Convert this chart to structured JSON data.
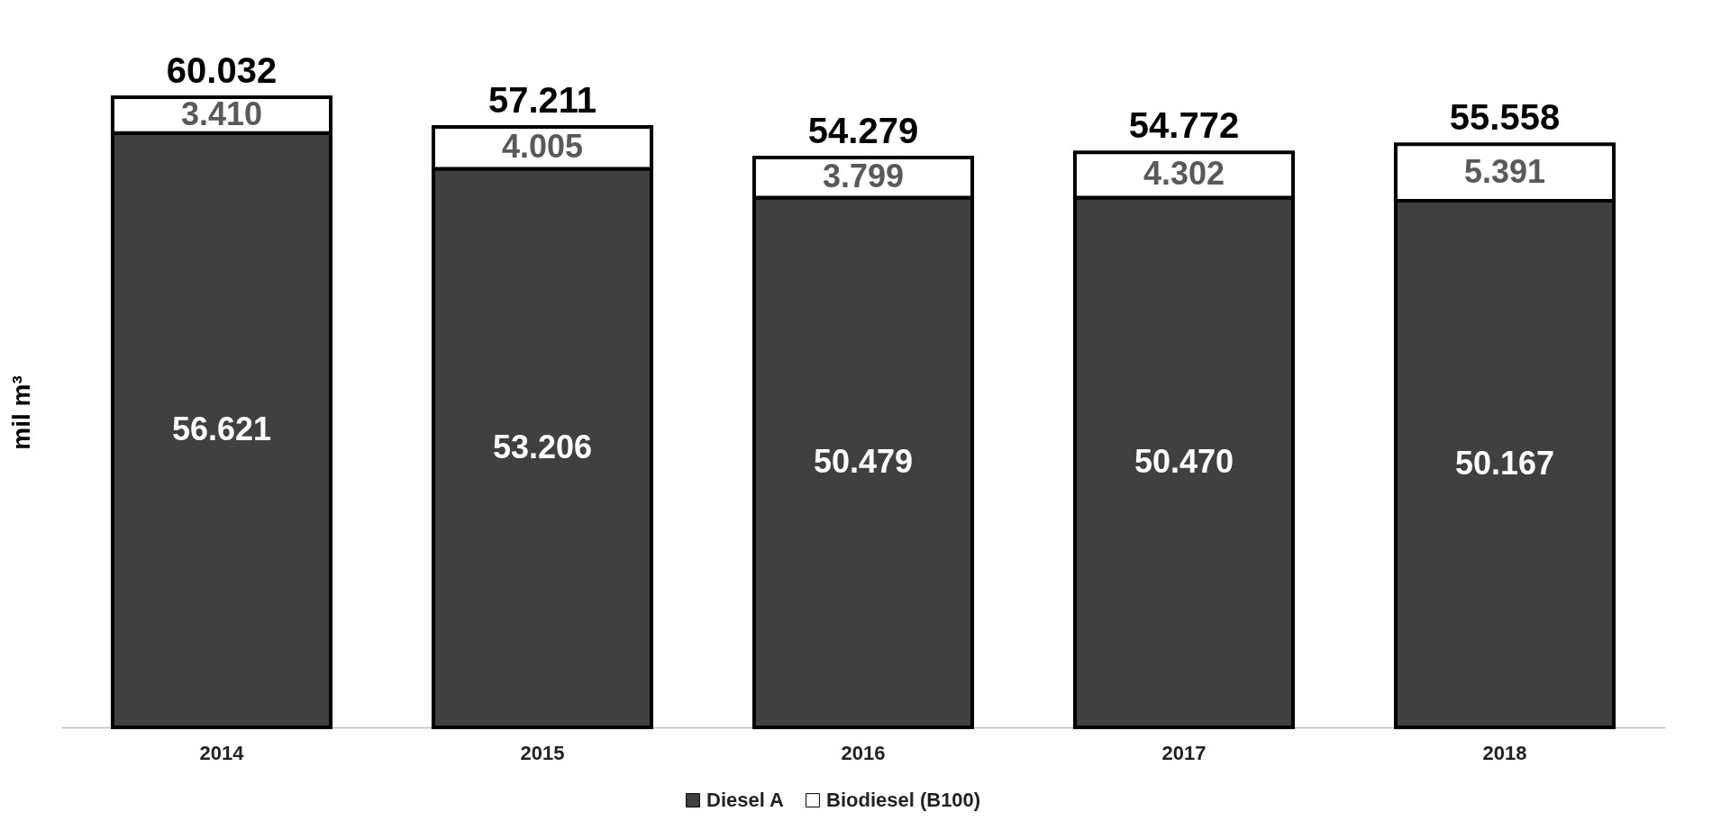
{
  "chart_data": {
    "type": "bar",
    "stacked": true,
    "ylabel": "mil m³",
    "categories": [
      "2014",
      "2015",
      "2016",
      "2017",
      "2018"
    ],
    "series": [
      {
        "name": "Diesel A",
        "color": "#404040",
        "values": [
          56.621,
          53.206,
          50.479,
          50.47,
          50.167
        ],
        "value_labels": [
          "56.621",
          "53.206",
          "50.479",
          "50.470",
          "50.167"
        ]
      },
      {
        "name": "Biodiesel (B100)",
        "color": "#ffffff",
        "values": [
          3.41,
          4.005,
          3.799,
          4.302,
          5.391
        ],
        "value_labels": [
          "3.410",
          "4.005",
          "3.799",
          "4.302",
          "5.391"
        ]
      }
    ],
    "totals": [
      "60.032",
      "57.211",
      "54.279",
      "54.772",
      "55.558"
    ],
    "tick_labels": "x",
    "grid": false,
    "legend": "bottom"
  }
}
